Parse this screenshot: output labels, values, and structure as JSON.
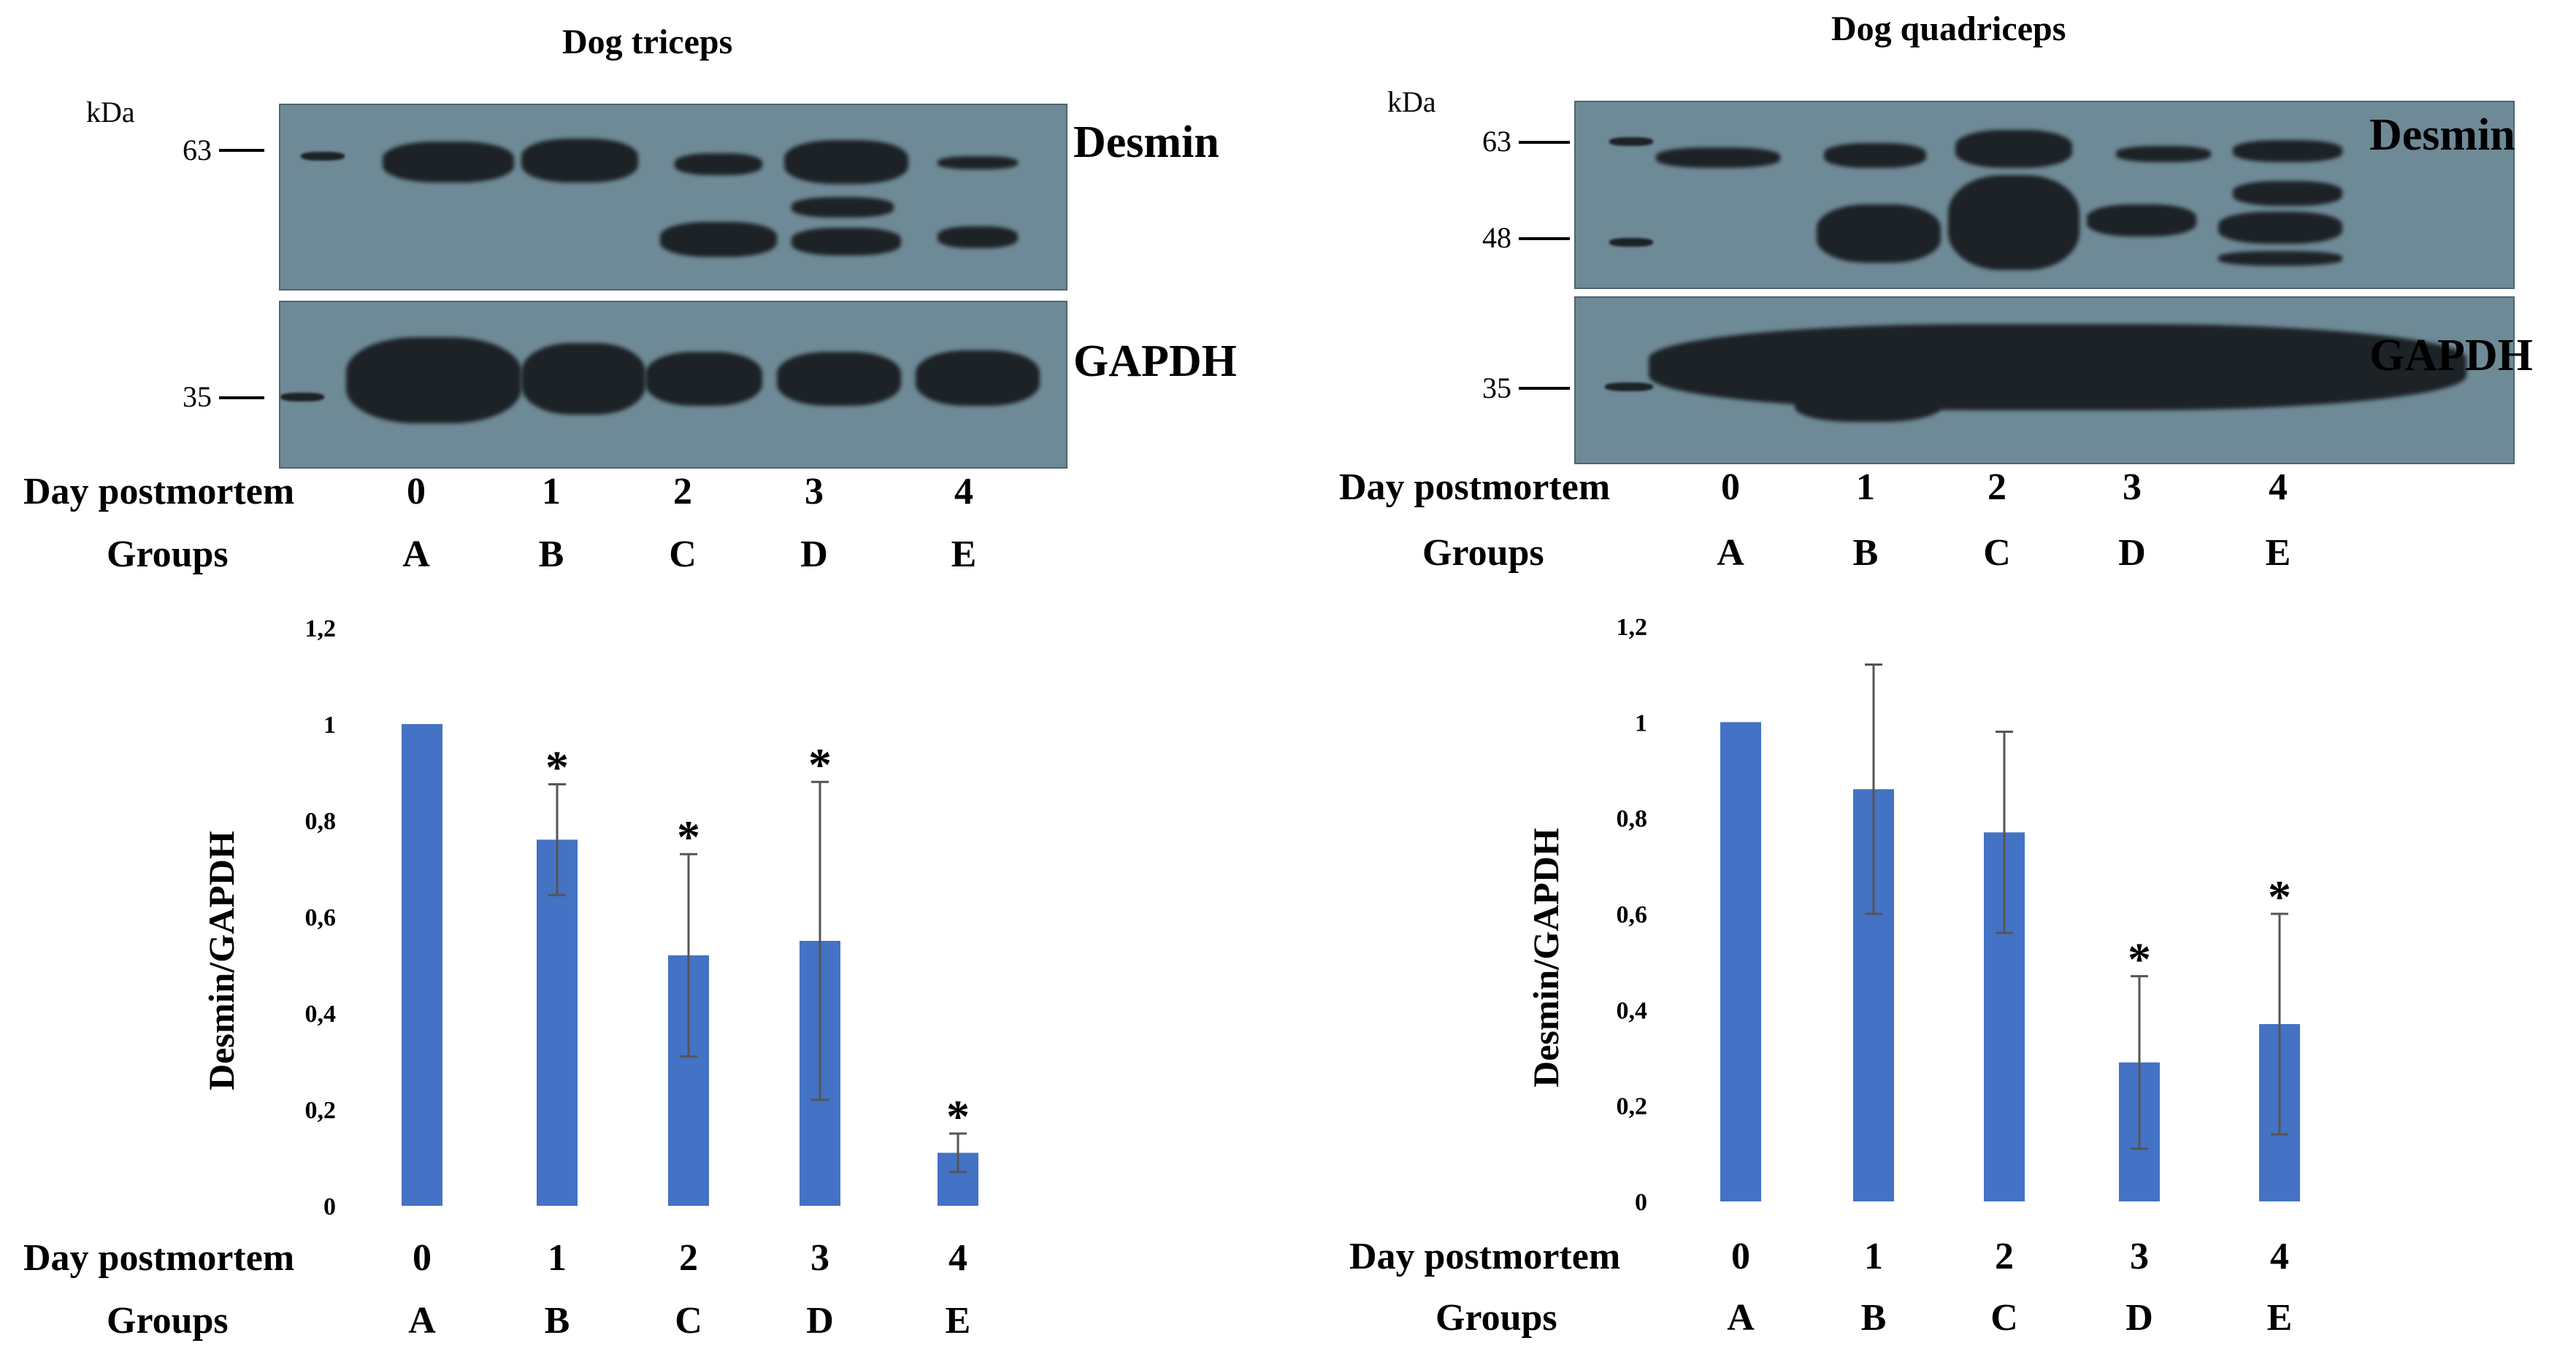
{
  "panels": [
    {
      "id": "triceps",
      "title": "Dog triceps",
      "kda_label": "kDa",
      "markers": [
        "63",
        "35"
      ],
      "proteins": [
        "Desmin",
        "GAPDH"
      ],
      "row_labels": {
        "day": "Day postmortem",
        "groups": "Groups"
      },
      "days": [
        "0",
        "1",
        "2",
        "3",
        "4"
      ],
      "groups": [
        "A",
        "B",
        "C",
        "D",
        "E"
      ]
    },
    {
      "id": "quadriceps",
      "title": "Dog quadriceps",
      "kda_label": "kDa",
      "markers": [
        "63",
        "48",
        "35"
      ],
      "proteins": [
        "Desmin",
        "GAPDH"
      ],
      "row_labels": {
        "day": "Day postmortem",
        "groups": "Groups"
      },
      "days": [
        "0",
        "1",
        "2",
        "3",
        "4"
      ],
      "groups": [
        "A",
        "B",
        "C",
        "D",
        "E"
      ]
    }
  ],
  "chart_data": [
    {
      "type": "bar",
      "ylabel": "Desmin/GAPDH",
      "ylim": [
        0,
        1.2
      ],
      "yticks": [
        "0",
        "0,2",
        "0,4",
        "0,6",
        "0,8",
        "1",
        "1,2"
      ],
      "categories": [
        "0",
        "1",
        "2",
        "3",
        "4"
      ],
      "groups": [
        "A",
        "B",
        "C",
        "D",
        "E"
      ],
      "values": [
        1.0,
        0.76,
        0.52,
        0.55,
        0.11
      ],
      "errors": [
        0.0,
        0.115,
        0.21,
        0.33,
        0.04
      ],
      "significance": [
        "",
        "*",
        "*",
        "*",
        "*"
      ],
      "bar_color": "#4472c4",
      "x_row_labels": {
        "day": "Day postmortem",
        "groups": "Groups"
      }
    },
    {
      "type": "bar",
      "ylabel": "Desmin/GAPDH",
      "ylim": [
        0,
        1.2
      ],
      "yticks": [
        "0",
        "0,2",
        "0,4",
        "0,6",
        "0,8",
        "1",
        "1,2"
      ],
      "categories": [
        "0",
        "1",
        "2",
        "3",
        "4"
      ],
      "groups": [
        "A",
        "B",
        "C",
        "D",
        "E"
      ],
      "values": [
        1.0,
        0.86,
        0.77,
        0.29,
        0.37
      ],
      "errors": [
        0.0,
        0.26,
        0.21,
        0.18,
        0.23
      ],
      "significance": [
        "",
        "",
        "",
        "*",
        "*"
      ],
      "bar_color": "#4472c4",
      "x_row_labels": {
        "day": "Day postmortem",
        "groups": "Groups"
      }
    }
  ]
}
